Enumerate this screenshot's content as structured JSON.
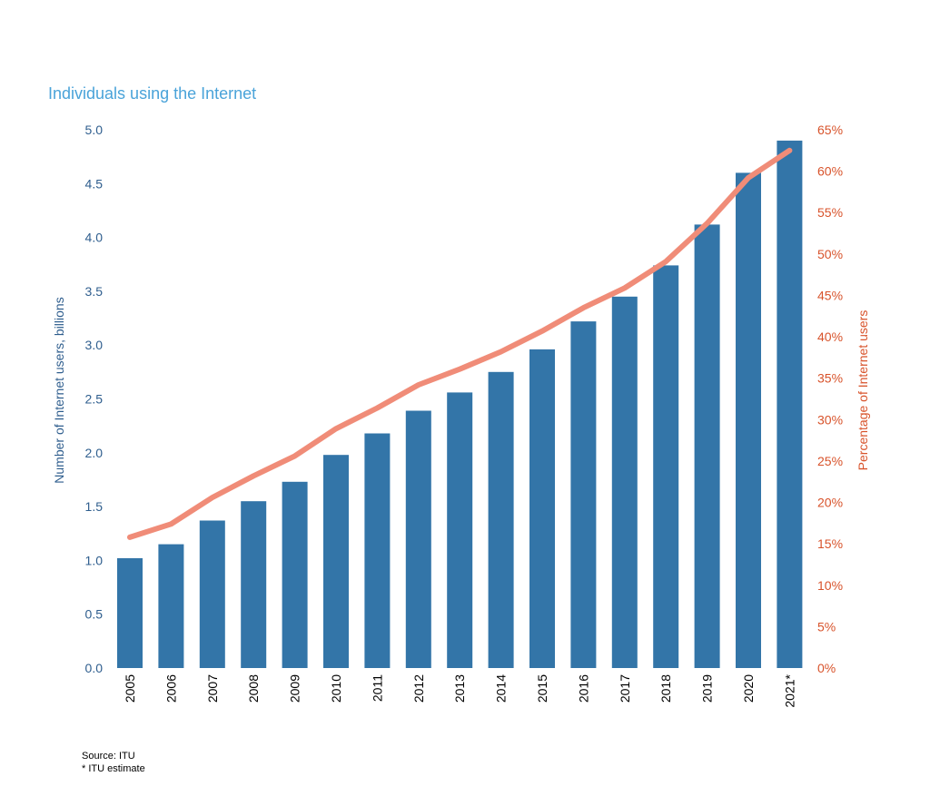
{
  "title": "Individuals using the Internet",
  "source_note": "Source: ITU",
  "estimate_note": "* ITU estimate",
  "colors": {
    "bar": "#3375a8",
    "line": "#f08c78",
    "left_axis_text": "#2f5e8e",
    "right_axis_text": "#d8532b",
    "title": "#4aa3d9"
  },
  "chart_data": {
    "type": "bar",
    "categories": [
      "2005",
      "2006",
      "2007",
      "2008",
      "2009",
      "2010",
      "2011",
      "2012",
      "2013",
      "2014",
      "2015",
      "2016",
      "2017",
      "2018",
      "2019",
      "2020",
      "2021*"
    ],
    "series": [
      {
        "type": "bar",
        "axis": "left",
        "values": [
          1.02,
          1.15,
          1.37,
          1.55,
          1.73,
          1.98,
          2.18,
          2.39,
          2.56,
          2.75,
          2.96,
          3.22,
          3.45,
          3.74,
          4.12,
          4.6,
          4.9
        ]
      },
      {
        "type": "line",
        "axis": "right",
        "values": [
          15.8,
          17.4,
          20.6,
          23.2,
          25.6,
          28.9,
          31.4,
          34.2,
          36.1,
          38.2,
          40.7,
          43.5,
          45.9,
          49.1,
          53.7,
          59.2,
          62.5
        ]
      }
    ],
    "ylabel": "Number of Internet users, billions",
    "y2label": "Percentage of Internet users",
    "ylim": [
      0,
      5
    ],
    "y2lim": [
      0,
      65
    ],
    "yticks": [
      "0.0",
      "0.5",
      "1.0",
      "1.5",
      "2.0",
      "2.5",
      "3.0",
      "3.5",
      "4.0",
      "4.5",
      "5.0"
    ],
    "y2ticks": [
      "0%",
      "5%",
      "10%",
      "15%",
      "20%",
      "25%",
      "30%",
      "35%",
      "40%",
      "45%",
      "50%",
      "55%",
      "60%",
      "65%"
    ],
    "grid": false,
    "legend": "none"
  }
}
